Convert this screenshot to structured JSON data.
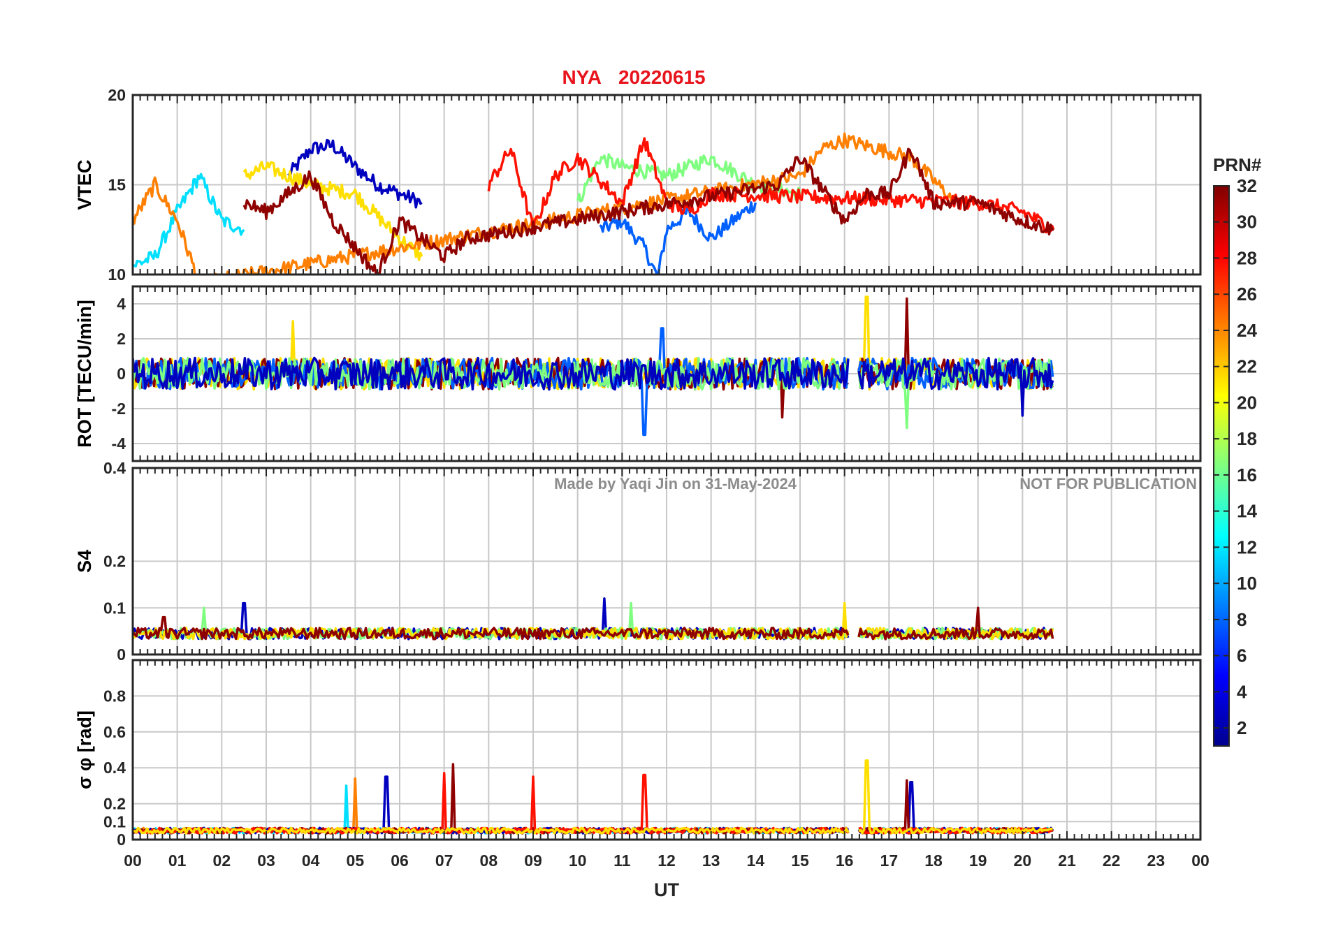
{
  "figure": {
    "title_station": "NYA",
    "title_date": "20220615",
    "watermark_author": "Made by Yaqi Jin on 31-May-2024",
    "watermark_notice": "NOT FOR PUBLICATION"
  },
  "colorbar": {
    "label": "PRN#",
    "range": [
      1,
      32
    ],
    "tick_labels": [
      "2",
      "4",
      "6",
      "8",
      "10",
      "12",
      "14",
      "16",
      "18",
      "20",
      "22",
      "24",
      "26",
      "28",
      "30",
      "32"
    ],
    "colormap": "jet"
  },
  "chart_data": [
    {
      "type": "line",
      "panel": "VTEC",
      "ylabel": "VTEC",
      "ylim": [
        10,
        20
      ],
      "yticks": [
        "10",
        "15",
        "20"
      ],
      "x_unit": "UT hour",
      "xlim": [
        0,
        24
      ],
      "grid": true,
      "data_gap_hours": [
        16.1,
        16.3
      ],
      "series": [
        {
          "prn": 2,
          "color": "#0000bf",
          "x": [
            3.5,
            4.0,
            4.5,
            5.0,
            5.5,
            6.0,
            6.5
          ],
          "y": [
            15.5,
            17.0,
            17.2,
            16.0,
            15.0,
            14.5,
            14.0
          ]
        },
        {
          "prn": 9,
          "color": "#0060ff",
          "x": [
            10.5,
            11.0,
            11.5,
            11.8,
            12.0,
            12.5,
            13.0,
            14.0
          ],
          "y": [
            12.5,
            13.0,
            11.5,
            9.8,
            12.5,
            13.5,
            12.0,
            14.0
          ]
        },
        {
          "prn": 13,
          "color": "#00dfff",
          "x": [
            0.0,
            0.5,
            1.0,
            1.5,
            2.0,
            2.5
          ],
          "y": [
            10.5,
            11.0,
            13.5,
            15.5,
            13.0,
            12.5
          ]
        },
        {
          "prn": 17,
          "color": "#7fff7f",
          "x": [
            10.0,
            10.5,
            11.0,
            12.0,
            13.0,
            14.0,
            15.0
          ],
          "y": [
            14.0,
            16.5,
            16.0,
            15.5,
            16.5,
            15.0,
            14.5
          ]
        },
        {
          "prn": 21,
          "color": "#ffdf00",
          "x": [
            2.5,
            3.0,
            4.0,
            5.0,
            6.0,
            6.5
          ],
          "y": [
            15.5,
            16.0,
            15.0,
            14.5,
            12.0,
            11.0
          ]
        },
        {
          "prn": 24,
          "color": "#ff7f00",
          "x": [
            0.0,
            0.5,
            1.0,
            1.5,
            15.0,
            15.5,
            16.0,
            17.5,
            18.5
          ],
          "y": [
            13.0,
            15.0,
            13.0,
            9.5,
            15.5,
            17.0,
            17.5,
            16.5,
            14.0
          ]
        },
        {
          "prn": 28,
          "color": "#ff1000",
          "x": [
            8.0,
            8.5,
            9.0,
            9.5,
            10.0,
            11.0,
            11.5,
            12.0,
            12.5,
            13.0,
            19.0,
            20.0,
            20.7
          ],
          "y": [
            15.0,
            17.0,
            12.5,
            15.5,
            16.5,
            14.0,
            17.5,
            14.0,
            13.5,
            14.5,
            14.0,
            13.5,
            12.5
          ]
        },
        {
          "prn": 32,
          "color": "#8f0000",
          "x": [
            2.5,
            3.0,
            4.0,
            4.5,
            5.5,
            6.0,
            7.0,
            7.5,
            14.5,
            15.0,
            16.0,
            16.5,
            17.0,
            17.5,
            18.0,
            19.0,
            20.0,
            20.7
          ],
          "y": [
            14.0,
            13.5,
            15.5,
            13.0,
            10.0,
            13.0,
            11.0,
            12.0,
            15.0,
            16.5,
            13.0,
            14.5,
            14.5,
            17.0,
            14.0,
            14.0,
            13.0,
            12.5
          ]
        }
      ]
    },
    {
      "type": "line",
      "panel": "ROT",
      "ylabel": "ROT [TECU/min]",
      "ylim": [
        -5,
        5
      ],
      "yticks": [
        "-4",
        "-2",
        "0",
        "2",
        "4"
      ],
      "x_unit": "UT hour",
      "xlim": [
        0,
        24
      ],
      "grid": true,
      "notes_values": "dense fluctuation about 0 for all PRNs, amplitude mostly within ±1.5 TECU/min",
      "series": [
        {
          "prn": 21,
          "color": "#ffdf00",
          "x": [
            3.6,
            16.5
          ],
          "y": [
            3.0,
            4.4
          ]
        },
        {
          "prn": 32,
          "color": "#8f0000",
          "x": [
            14.6,
            17.4
          ],
          "y": [
            -2.5,
            4.3
          ]
        },
        {
          "prn": 9,
          "color": "#0060ff",
          "x": [
            11.5,
            11.9
          ],
          "y": [
            -3.5,
            2.6
          ]
        },
        {
          "prn": 17,
          "color": "#7fff7f",
          "x": [
            17.4
          ],
          "y": [
            -3.1
          ]
        },
        {
          "prn": 2,
          "color": "#0000bf",
          "x": [
            20.0
          ],
          "y": [
            -2.4
          ]
        }
      ]
    },
    {
      "type": "line",
      "panel": "S4",
      "ylabel": "S4",
      "ylim": [
        0,
        0.4
      ],
      "yticks": [
        "0",
        "0.1",
        "0.2",
        "0.4"
      ],
      "x_unit": "UT hour",
      "xlim": [
        0,
        24
      ],
      "grid": true,
      "notes_values": "baseline approximately 0.03-0.06 for all PRNs",
      "series": [
        {
          "prn": 2,
          "color": "#0000bf",
          "x": [
            2.5,
            10.6
          ],
          "y": [
            0.11,
            0.12
          ]
        },
        {
          "prn": 17,
          "color": "#7fff7f",
          "x": [
            1.6,
            11.2
          ],
          "y": [
            0.1,
            0.11
          ]
        },
        {
          "prn": 21,
          "color": "#ffdf00",
          "x": [
            16.0
          ],
          "y": [
            0.11
          ]
        },
        {
          "prn": 32,
          "color": "#8f0000",
          "x": [
            0.7,
            19.0
          ],
          "y": [
            0.08,
            0.1
          ]
        }
      ]
    },
    {
      "type": "line",
      "panel": "sigma_phi",
      "ylabel": "σ φ [rad]",
      "ylim": [
        0,
        1
      ],
      "yticks": [
        "0",
        "0.1",
        "0.2",
        "0.4",
        "0.6",
        "0.8"
      ],
      "x_unit": "UT hour",
      "xlim": [
        0,
        24
      ],
      "grid": true,
      "notes_values": "baseline approximately 0.03-0.07 for all PRNs",
      "series": [
        {
          "prn": 13,
          "color": "#00dfff",
          "x": [
            4.8
          ],
          "y": [
            0.3
          ]
        },
        {
          "prn": 24,
          "color": "#ff7f00",
          "x": [
            5.0
          ],
          "y": [
            0.34
          ]
        },
        {
          "prn": 2,
          "color": "#0000bf",
          "x": [
            5.7,
            17.5
          ],
          "y": [
            0.35,
            0.32
          ]
        },
        {
          "prn": 32,
          "color": "#8f0000",
          "x": [
            7.2,
            17.4
          ],
          "y": [
            0.42,
            0.33
          ]
        },
        {
          "prn": 28,
          "color": "#ff1000",
          "x": [
            7.0,
            9.0,
            11.5
          ],
          "y": [
            0.37,
            0.35,
            0.36
          ]
        },
        {
          "prn": 21,
          "color": "#ffdf00",
          "x": [
            16.5
          ],
          "y": [
            0.44
          ]
        }
      ]
    }
  ],
  "x_axis": {
    "label": "UT",
    "tick_labels": [
      "00",
      "01",
      "02",
      "03",
      "04",
      "05",
      "06",
      "07",
      "08",
      "09",
      "10",
      "11",
      "12",
      "13",
      "14",
      "15",
      "16",
      "17",
      "18",
      "19",
      "20",
      "21",
      "22",
      "23",
      "00"
    ]
  }
}
